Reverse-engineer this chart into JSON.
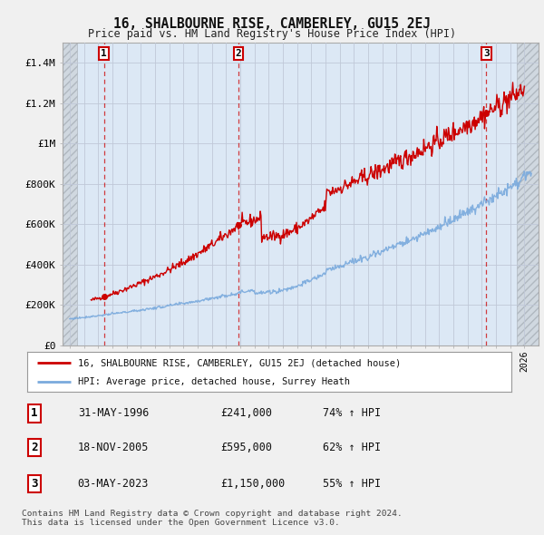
{
  "title": "16, SHALBOURNE RISE, CAMBERLEY, GU15 2EJ",
  "subtitle": "Price paid vs. HM Land Registry's House Price Index (HPI)",
  "legend_label_red": "16, SHALBOURNE RISE, CAMBERLEY, GU15 2EJ (detached house)",
  "legend_label_blue": "HPI: Average price, detached house, Surrey Heath",
  "footer": "Contains HM Land Registry data © Crown copyright and database right 2024.\nThis data is licensed under the Open Government Licence v3.0.",
  "sales": [
    {
      "num": 1,
      "date": "31-MAY-1996",
      "price": 241000,
      "pct": "74%",
      "x_year": 1996.42
    },
    {
      "num": 2,
      "date": "18-NOV-2005",
      "price": 595000,
      "pct": "62%",
      "x_year": 2005.88
    },
    {
      "num": 3,
      "date": "03-MAY-2023",
      "price": 1150000,
      "pct": "55%",
      "x_year": 2023.33
    }
  ],
  "ylim": [
    0,
    1500000
  ],
  "xlim": [
    1993.5,
    2027.0
  ],
  "yticks": [
    0,
    200000,
    400000,
    600000,
    800000,
    1000000,
    1200000,
    1400000
  ],
  "ytick_labels": [
    "£0",
    "£200K",
    "£400K",
    "£600K",
    "£800K",
    "£1M",
    "£1.2M",
    "£1.4M"
  ],
  "red_color": "#cc0000",
  "blue_color": "#7aaadd",
  "bg_color": "#f0f0f0",
  "plot_bg": "#dce8f5",
  "hatch_bg": "#d0d8e0"
}
